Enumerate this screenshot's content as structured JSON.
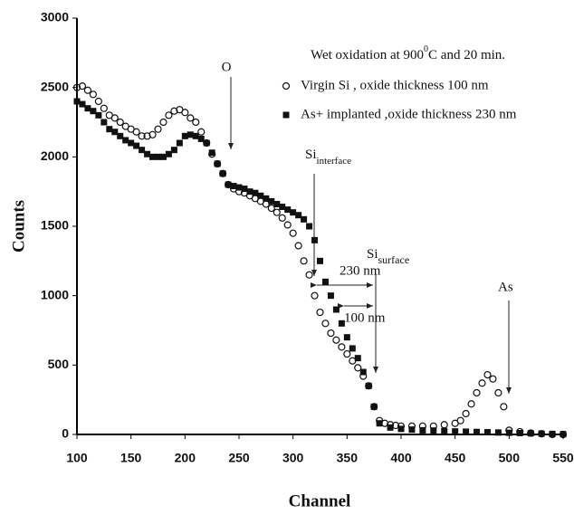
{
  "chart_data": {
    "type": "scatter",
    "title": {
      "text": "Wet oxidation at 900",
      "sup": "0",
      "rest": "C and 20 min."
    },
    "xlabel": "Channel",
    "ylabel": "Counts",
    "xlim": [
      100,
      550
    ],
    "xticks": [
      100,
      150,
      200,
      250,
      300,
      350,
      400,
      450,
      500,
      550
    ],
    "ylim": [
      0,
      3000
    ],
    "yticks": [
      0,
      500,
      1000,
      1500,
      2000,
      2500,
      3000
    ],
    "series": [
      {
        "name": "Virgin Si , oxide thickness 100 nm",
        "marker": "open-circle",
        "color": "#111",
        "x": [
          100,
          105,
          110,
          115,
          120,
          125,
          130,
          135,
          140,
          145,
          150,
          155,
          160,
          165,
          170,
          175,
          180,
          185,
          190,
          195,
          200,
          205,
          210,
          215,
          220,
          225,
          230,
          235,
          240,
          245,
          250,
          255,
          260,
          265,
          270,
          275,
          280,
          285,
          290,
          295,
          300,
          305,
          310,
          315,
          320,
          325,
          330,
          335,
          340,
          345,
          350,
          355,
          360,
          365,
          370,
          375,
          380,
          385,
          390,
          395,
          400,
          410,
          420,
          430,
          440,
          450,
          455,
          460,
          465,
          470,
          475,
          480,
          485,
          490,
          495,
          500,
          510,
          520,
          530,
          540,
          550
        ],
        "values": [
          2500,
          2510,
          2480,
          2450,
          2400,
          2350,
          2300,
          2280,
          2250,
          2220,
          2200,
          2180,
          2150,
          2150,
          2160,
          2200,
          2250,
          2300,
          2330,
          2340,
          2320,
          2280,
          2250,
          2180,
          2100,
          2020,
          1950,
          1880,
          1800,
          1770,
          1750,
          1740,
          1720,
          1700,
          1680,
          1660,
          1630,
          1600,
          1560,
          1510,
          1450,
          1360,
          1250,
          1150,
          1000,
          880,
          800,
          730,
          680,
          630,
          580,
          530,
          480,
          420,
          350,
          200,
          100,
          80,
          70,
          65,
          60,
          60,
          60,
          60,
          70,
          80,
          100,
          150,
          220,
          300,
          370,
          430,
          400,
          300,
          200,
          30,
          20,
          10,
          5,
          0,
          0
        ]
      },
      {
        "name": "As+ implanted ,oxide thickness 230 nm",
        "marker": "filled-square",
        "color": "#111",
        "x": [
          100,
          105,
          110,
          115,
          120,
          125,
          130,
          135,
          140,
          145,
          150,
          155,
          160,
          165,
          170,
          175,
          180,
          185,
          190,
          195,
          200,
          205,
          210,
          215,
          220,
          225,
          230,
          235,
          240,
          245,
          250,
          255,
          260,
          265,
          270,
          275,
          280,
          285,
          290,
          295,
          300,
          305,
          310,
          315,
          320,
          325,
          330,
          335,
          340,
          345,
          350,
          355,
          360,
          365,
          370,
          375,
          380,
          390,
          400,
          410,
          420,
          430,
          440,
          450,
          460,
          470,
          480,
          490,
          500,
          510,
          520,
          530,
          540,
          550
        ],
        "values": [
          2400,
          2380,
          2350,
          2330,
          2300,
          2250,
          2200,
          2180,
          2150,
          2120,
          2100,
          2080,
          2050,
          2020,
          2000,
          2000,
          2000,
          2020,
          2050,
          2100,
          2150,
          2160,
          2150,
          2130,
          2100,
          2030,
          1950,
          1880,
          1800,
          1790,
          1780,
          1770,
          1750,
          1740,
          1720,
          1700,
          1680,
          1660,
          1640,
          1620,
          1600,
          1580,
          1550,
          1500,
          1400,
          1250,
          1100,
          1000,
          900,
          800,
          700,
          620,
          550,
          450,
          350,
          200,
          80,
          50,
          40,
          35,
          30,
          28,
          25,
          22,
          20,
          18,
          16,
          14,
          12,
          10,
          8,
          6,
          4,
          2
        ]
      }
    ],
    "annotations": [
      {
        "text": "O"
      },
      {
        "text": "Si",
        "sub": "interface"
      },
      {
        "text": "Si",
        "sub": "surface"
      },
      {
        "text": "As"
      },
      {
        "text": "230 nm"
      },
      {
        "text": "100 nm"
      }
    ]
  }
}
